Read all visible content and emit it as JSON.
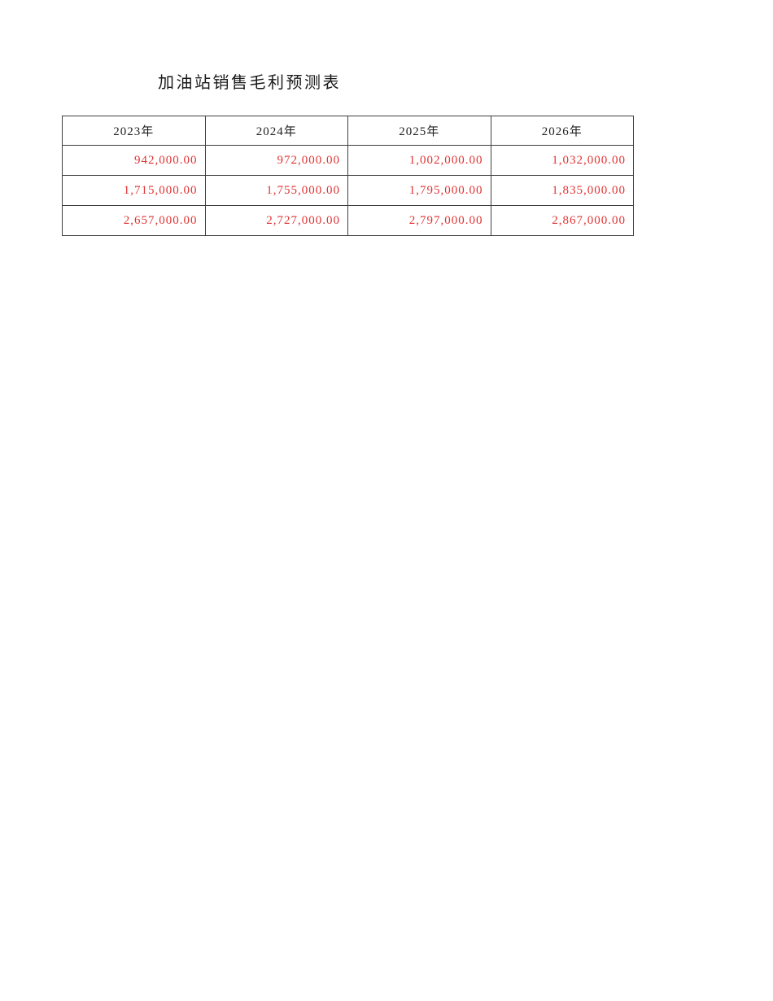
{
  "page": {
    "title": "加油站销售毛利预测表"
  },
  "table": {
    "columns": [
      "2023年",
      "2024年",
      "2025年",
      "2026年"
    ],
    "rows": [
      [
        "942,000.00",
        "972,000.00",
        "1,002,000.00",
        "1,032,000.00"
      ],
      [
        "1,715,000.00",
        "1,755,000.00",
        "1,795,000.00",
        "1,835,000.00"
      ],
      [
        "2,657,000.00",
        "2,727,000.00",
        "2,797,000.00",
        "2,867,000.00"
      ]
    ]
  },
  "colors": {
    "background": "#ffffff",
    "title_text": "#1a1a1a",
    "header_text": "#1f1f1f",
    "data_text": "#e23333",
    "border": "#3f3f3f"
  }
}
